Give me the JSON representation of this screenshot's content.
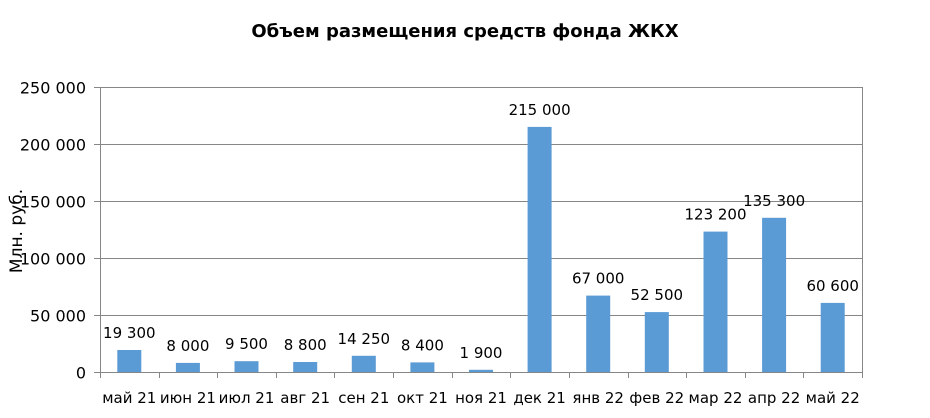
{
  "chart_data": {
    "type": "bar",
    "title": "Объем размещения средств фонда ЖКХ",
    "ylabel": "Млн. руб.",
    "xlabel": "",
    "ylim": [
      0,
      250000
    ],
    "yticks": [
      0,
      50000,
      100000,
      150000,
      200000,
      250000
    ],
    "ytick_labels": [
      "0",
      "50 000",
      "100 000",
      "150 000",
      "200 000",
      "250 000"
    ],
    "grid": true,
    "categories": [
      "май 21",
      "июн 21",
      "июл 21",
      "авг 21",
      "сен 21",
      "окт 21",
      "ноя 21",
      "дек 21",
      "янв 22",
      "фев 22",
      "мар 22",
      "апр 22",
      "май 22"
    ],
    "values": [
      19300,
      8000,
      9500,
      8800,
      14250,
      8400,
      1900,
      215000,
      67000,
      52500,
      123200,
      135300,
      60600
    ],
    "data_labels": [
      "19 300",
      "8 000",
      "9 500",
      "8 800",
      "14 250",
      "8 400",
      "1 900",
      "215 000",
      "67 000",
      "52 500",
      "123 200",
      "135 300",
      "60 600"
    ],
    "bar_color": "#5B9BD5",
    "grid_color": "#868686"
  }
}
